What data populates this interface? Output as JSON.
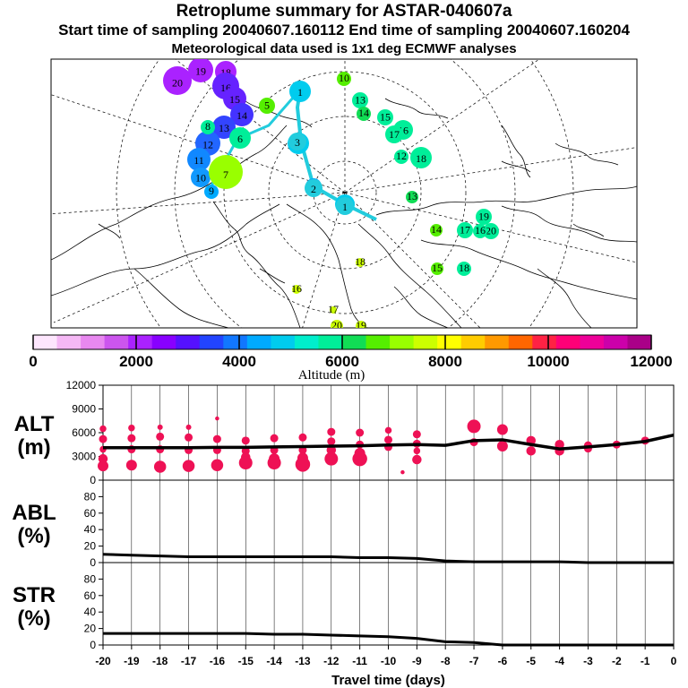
{
  "header": {
    "title": "Retroplume summary for ASTAR-040607a",
    "sampling": "Start time of sampling 20040607.160112     End time of sampling 20040607.160204",
    "met": "Meteorological data used is 1x1 deg ECMWF analyses"
  },
  "map": {
    "altitude_label": "Altitude (m)",
    "colorbar": {
      "ticks": [
        "0",
        "2000",
        "4000",
        "6000",
        "8000",
        "10000",
        "12000"
      ],
      "colors": [
        "#fde6fd",
        "#f5b8f5",
        "#e888f0",
        "#cc55ee",
        "#aa22ff",
        "#8800ff",
        "#5511ff",
        "#2244ff",
        "#1177ff",
        "#00aaff",
        "#00ccee",
        "#00eecc",
        "#00ee99",
        "#11dd55",
        "#55ee00",
        "#99ff00",
        "#ccff00",
        "#ffff00",
        "#ffcc00",
        "#ff9900",
        "#ff6600",
        "#ff2244",
        "#ff0077",
        "#ee0099",
        "#cc00aa",
        "#aa0088"
      ]
    },
    "trajectory_days": [
      "1",
      "2",
      "3"
    ],
    "clusters": [
      {
        "day": "20",
        "color": "#aa22ff",
        "r": 16
      },
      {
        "day": "19",
        "color": "#aa22ff",
        "r": 14
      },
      {
        "day": "18",
        "color": "#aa22ff",
        "r": 12
      },
      {
        "day": "16",
        "color": "#6622ff",
        "r": 15
      },
      {
        "day": "15",
        "color": "#6622ff",
        "r": 13
      },
      {
        "day": "14",
        "color": "#4433ff",
        "r": 13
      },
      {
        "day": "13",
        "color": "#3344ff",
        "r": 13
      },
      {
        "day": "12",
        "color": "#2266ff",
        "r": 14
      },
      {
        "day": "11",
        "color": "#1188ff",
        "r": 13
      },
      {
        "day": "10",
        "color": "#1199ff",
        "r": 11
      },
      {
        "day": "9",
        "color": "#00aaff",
        "r": 8
      },
      {
        "day": "8",
        "color": "#00ee99",
        "r": 8
      },
      {
        "day": "7",
        "color": "#99ff00",
        "r": 19
      },
      {
        "day": "6",
        "color": "#00ee99",
        "r": 12
      },
      {
        "day": "5",
        "color": "#55ee00",
        "r": 9
      },
      {
        "day": "4",
        "color": "#00ccee",
        "r": 12
      },
      {
        "day": "3",
        "color": "#00aaff",
        "r": 9
      },
      {
        "day": "2",
        "color": "#00ccee",
        "r": 11
      },
      {
        "day": "1",
        "color": "#00ccee",
        "r": 12
      },
      {
        "day": "10",
        "color": "#55ee00",
        "r": 8
      },
      {
        "day": "13",
        "color": "#00ee99",
        "r": 9
      },
      {
        "day": "14",
        "color": "#11dd55",
        "r": 8
      },
      {
        "day": "15",
        "color": "#00ee99",
        "r": 9
      },
      {
        "day": "16",
        "color": "#00ee99",
        "r": 11
      },
      {
        "day": "17",
        "color": "#00ee99",
        "r": 10
      },
      {
        "day": "18",
        "color": "#00ee99",
        "r": 12
      },
      {
        "day": "19",
        "color": "#00ee99",
        "r": 9
      },
      {
        "day": "20",
        "color": "#00ee99",
        "r": 9
      },
      {
        "day": "12",
        "color": "#00ee99",
        "r": 8
      },
      {
        "day": "13",
        "color": "#11dd55",
        "r": 7
      },
      {
        "day": "14",
        "color": "#55ee00",
        "r": 7
      },
      {
        "day": "17",
        "color": "#00ee99",
        "r": 9
      },
      {
        "day": "16",
        "color": "#00ee99",
        "r": 8
      },
      {
        "day": "15",
        "color": "#55ee00",
        "r": 7
      },
      {
        "day": "18",
        "color": "#00ee99",
        "r": 8
      },
      {
        "day": "16",
        "color": "#ccff00",
        "r": 5
      },
      {
        "day": "18",
        "color": "#ccff00",
        "r": 5
      },
      {
        "day": "17",
        "color": "#ccff00",
        "r": 4
      },
      {
        "day": "20",
        "color": "#ccff00",
        "r": 7
      },
      {
        "day": "19",
        "color": "#ccff00",
        "r": 6
      }
    ]
  },
  "chart_data": [
    {
      "type": "scatter",
      "panel": "ALT",
      "ylabel": "ALT (m)",
      "xlabel": "Travel time (days)",
      "xlim": [
        -20,
        0
      ],
      "ylim": [
        0,
        12000
      ],
      "yticks": [
        0,
        3000,
        6000,
        9000,
        12000
      ],
      "mean_line": {
        "x": [
          -20,
          -19,
          -18,
          -17,
          -16,
          -15,
          -14,
          -13,
          -12,
          -11,
          -10,
          -9,
          -8,
          -7,
          -6,
          -5,
          -4,
          -3,
          -2,
          -1,
          0
        ],
        "y": [
          4100,
          4100,
          4100,
          4100,
          4150,
          4150,
          4200,
          4250,
          4300,
          4350,
          4450,
          4500,
          4400,
          5000,
          5100,
          4500,
          3950,
          4200,
          4500,
          4900,
          5700
        ]
      },
      "clusters": {
        "x": [
          -20,
          -20,
          -20,
          -20,
          -20,
          -19,
          -19,
          -19,
          -19,
          -18,
          -18,
          -18,
          -18,
          -17,
          -17,
          -17,
          -17,
          -16,
          -16,
          -16,
          -16,
          -15,
          -15,
          -15,
          -15,
          -14,
          -14,
          -14,
          -14,
          -13,
          -13,
          -13,
          -13,
          -12,
          -12,
          -12,
          -12,
          -11,
          -11,
          -11,
          -11,
          -10,
          -10,
          -10,
          -9,
          -9,
          -9,
          -9,
          -7,
          -7,
          -6,
          -6,
          -5,
          -5,
          -4,
          -4,
          -3,
          -3,
          -2,
          -1,
          -9.5
        ],
        "y": [
          6500,
          5200,
          3900,
          2700,
          1800,
          6600,
          5300,
          3900,
          1900,
          6700,
          5500,
          3900,
          1700,
          6700,
          5400,
          3800,
          1800,
          7800,
          5200,
          3800,
          1900,
          5000,
          3700,
          2900,
          2200,
          5300,
          3800,
          2700,
          2200,
          5400,
          3800,
          2800,
          2000,
          6100,
          4900,
          3800,
          2700,
          6000,
          4500,
          3400,
          2700,
          6300,
          5100,
          4200,
          5800,
          4600,
          3700,
          2600,
          6800,
          4800,
          6400,
          4300,
          5000,
          3700,
          4500,
          3700,
          4400,
          4000,
          4500,
          5000,
          1000
        ],
        "size": [
          5,
          6,
          5,
          7,
          8,
          5,
          6,
          6,
          8,
          4,
          6,
          6,
          9,
          4,
          6,
          6,
          9,
          3,
          6,
          6,
          9,
          6,
          6,
          7,
          10,
          6,
          6,
          8,
          10,
          6,
          6,
          8,
          11,
          6,
          6,
          7,
          10,
          6,
          6,
          8,
          11,
          5,
          6,
          6,
          6,
          6,
          5,
          7,
          10,
          6,
          8,
          8,
          7,
          7,
          7,
          7,
          6,
          6,
          6,
          6,
          3
        ]
      }
    },
    {
      "type": "line",
      "panel": "ABL",
      "ylabel": "ABL (%)",
      "xlabel": "Travel time (days)",
      "xlim": [
        -20,
        0
      ],
      "ylim": [
        0,
        100
      ],
      "yticks": [
        0,
        20,
        40,
        60,
        80
      ],
      "x": [
        -20,
        -19,
        -18,
        -17,
        -16,
        -15,
        -14,
        -13,
        -12,
        -11,
        -10,
        -9,
        -8,
        -7,
        -6,
        -5,
        -4,
        -3,
        -2,
        -1,
        0
      ],
      "y": [
        10,
        9,
        8,
        7,
        7,
        7,
        7,
        7,
        7,
        6,
        6,
        5,
        2,
        1,
        1,
        1,
        1,
        0,
        0,
        0,
        0
      ]
    },
    {
      "type": "line",
      "panel": "STR",
      "ylabel": "STR (%)",
      "xlabel": "Travel time (days)",
      "xlim": [
        -20,
        0
      ],
      "ylim": [
        0,
        100
      ],
      "yticks": [
        0,
        20,
        40,
        60,
        80
      ],
      "xticks": [
        "-20",
        "-19",
        "-18",
        "-17",
        "-16",
        "-15",
        "-14",
        "-13",
        "-12",
        "-11",
        "-10",
        "-9",
        "-8",
        "-7",
        "-6",
        "-5",
        "-4",
        "-3",
        "-2",
        "-1",
        "0"
      ],
      "x": [
        -20,
        -19,
        -18,
        -17,
        -16,
        -15,
        -14,
        -13,
        -12,
        -11,
        -10,
        -9,
        -8,
        -7,
        -6,
        -5,
        -4,
        -3,
        -2,
        -1,
        0
      ],
      "y": [
        14,
        14,
        14,
        14,
        14,
        14,
        13,
        13,
        12,
        11,
        10,
        8,
        4,
        3,
        0,
        0,
        0,
        0,
        0,
        0,
        0
      ]
    }
  ]
}
